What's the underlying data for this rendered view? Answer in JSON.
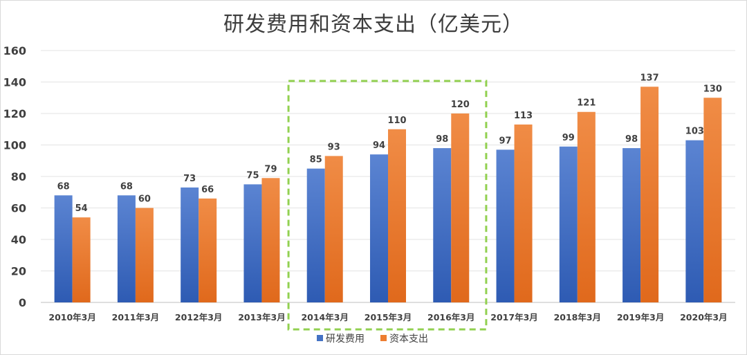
{
  "chart_data": {
    "type": "bar",
    "title": "研发费用和资本支出（亿美元）",
    "xlabel": "",
    "ylabel": "",
    "categories": [
      "2010年3月",
      "2011年3月",
      "2012年3月",
      "2013年3月",
      "2014年3月",
      "2015年3月",
      "2016年3月",
      "2017年3月",
      "2018年3月",
      "2019年3月",
      "2020年3月"
    ],
    "series": [
      {
        "name": "研发费用",
        "values": [
          68,
          68,
          73,
          75,
          85,
          94,
          98,
          97,
          99,
          98,
          103
        ],
        "color": "#4472c4"
      },
      {
        "name": "资本支出",
        "values": [
          54,
          60,
          66,
          79,
          93,
          110,
          120,
          113,
          121,
          137,
          130
        ],
        "color": "#ed7d31"
      }
    ],
    "ylim": [
      0,
      160
    ],
    "yticks": [
      0,
      20,
      40,
      60,
      80,
      100,
      120,
      140,
      160
    ],
    "grid": true,
    "legend": "bottom",
    "data_labels": true,
    "highlight": {
      "from": "2014年3月",
      "to": "2016年3月",
      "style": "dashed",
      "color": "#92d050"
    }
  }
}
